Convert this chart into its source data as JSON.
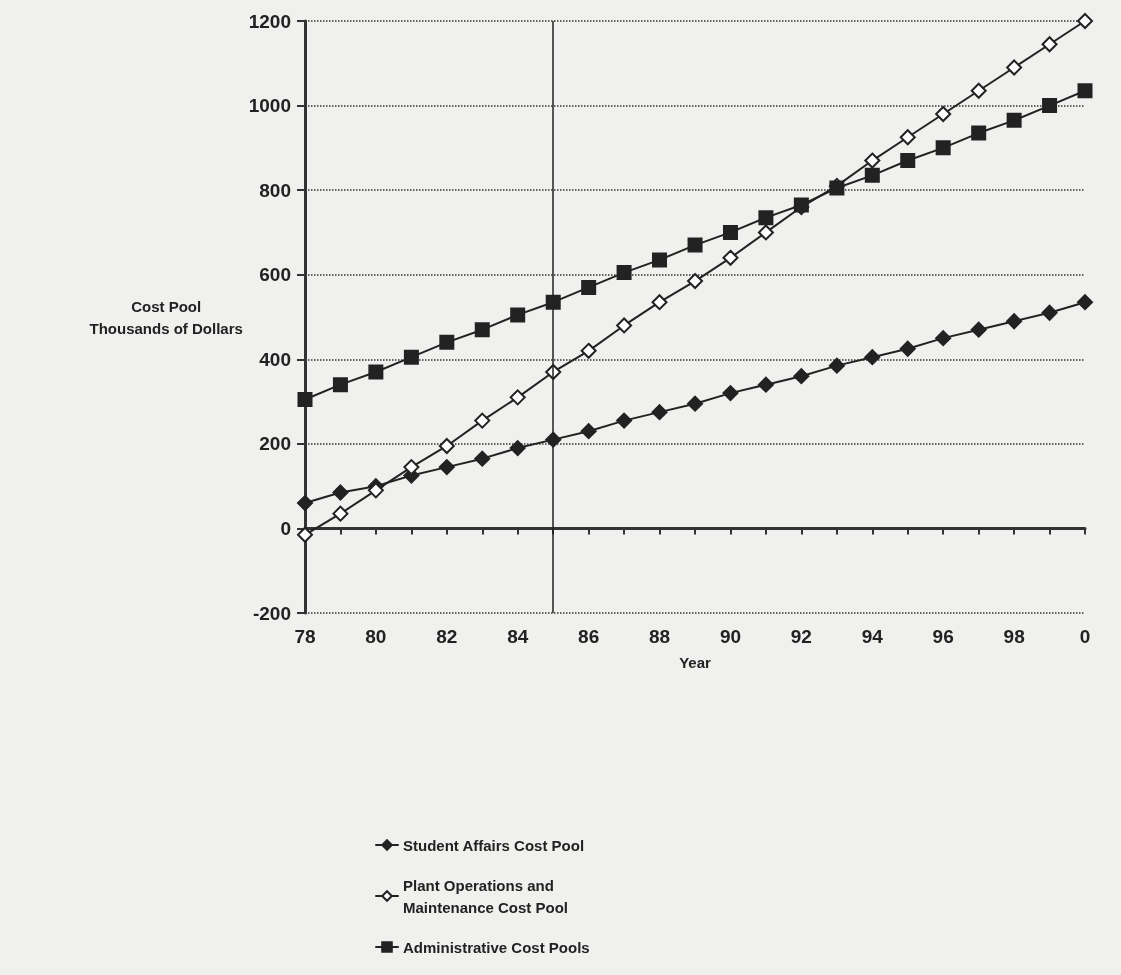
{
  "chart_data": {
    "type": "line",
    "xlabel": "Year",
    "ylabel": "Cost Pool\nThousands of Dollars",
    "x": [
      "1978",
      "1979",
      "1980",
      "1981",
      "1982",
      "1983",
      "1984",
      "1985",
      "1986",
      "1987",
      "1988",
      "1989",
      "1990",
      "1991",
      "1992",
      "1993",
      "1994",
      "1995",
      "1996",
      "1997",
      "1998",
      "1999",
      "2000"
    ],
    "series": [
      {
        "name": "Student Affairs Cost Pool",
        "color": "#222222",
        "marker": "diamond",
        "values": [
          60,
          85,
          100,
          125,
          145,
          165,
          190,
          210,
          230,
          255,
          275,
          295,
          320,
          340,
          360,
          385,
          405,
          425,
          450,
          470,
          490,
          510,
          535
        ]
      },
      {
        "name": "Plant Operations and Maintenance Cost Pool",
        "color": "#222222",
        "marker": "diamond-open",
        "values": [
          -15,
          35,
          90,
          145,
          195,
          255,
          310,
          370,
          420,
          480,
          535,
          585,
          640,
          700,
          760,
          810,
          870,
          925,
          980,
          1035,
          1090,
          1145,
          1200
        ]
      },
      {
        "name": "Administrative Cost Pools",
        "color": "#222222",
        "marker": "square",
        "values": [
          305,
          340,
          370,
          405,
          440,
          470,
          505,
          535,
          570,
          605,
          635,
          670,
          700,
          735,
          765,
          805,
          835,
          870,
          900,
          935,
          965,
          1000,
          1035
        ]
      }
    ],
    "xlim": [
      "1978",
      "2000"
    ],
    "xticks": [
      {
        "value": "1978",
        "label": "78"
      },
      {
        "value": "1980",
        "label": "80"
      },
      {
        "value": "1982",
        "label": "82"
      },
      {
        "value": "1984",
        "label": "84"
      },
      {
        "value": "1986",
        "label": "86"
      },
      {
        "value": "1988",
        "label": "88"
      },
      {
        "value": "1990",
        "label": "90"
      },
      {
        "value": "1992",
        "label": "92"
      },
      {
        "value": "1994",
        "label": "94"
      },
      {
        "value": "1996",
        "label": "96"
      },
      {
        "value": "1998",
        "label": "98"
      },
      {
        "value": "2000",
        "label": "0"
      }
    ],
    "ylim": [
      -200,
      1200
    ],
    "yticks": [
      -200,
      0,
      200,
      400,
      600,
      800,
      1000,
      1200
    ],
    "ref_lines": [
      {
        "axis": "x",
        "value": "1985",
        "color": "#222222"
      }
    ],
    "grid": "y",
    "line_style": "solid",
    "legend": "bottom"
  }
}
